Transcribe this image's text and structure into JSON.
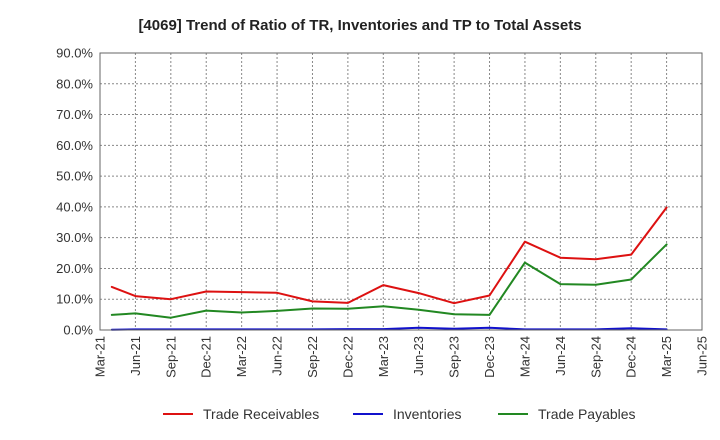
{
  "chart_data": {
    "type": "line",
    "title": "[4069]  Trend of Ratio of TR, Inventories and TP to Total Assets",
    "xlabel": "",
    "ylabel": "",
    "ylim": [
      0,
      90
    ],
    "y_ticks": [
      "0.0%",
      "10.0%",
      "20.0%",
      "30.0%",
      "40.0%",
      "50.0%",
      "60.0%",
      "70.0%",
      "80.0%",
      "90.0%"
    ],
    "x_ticks": [
      "Mar-21",
      "Jun-21",
      "Sep-21",
      "Dec-21",
      "Mar-22",
      "Jun-22",
      "Sep-22",
      "Dec-22",
      "Mar-23",
      "Jun-23",
      "Sep-23",
      "Dec-23",
      "Mar-24",
      "Jun-24",
      "Sep-24",
      "Dec-24",
      "Mar-25",
      "Jun-25"
    ],
    "grid": true,
    "legend_position": "bottom",
    "series": [
      {
        "name": "Trade Receivables",
        "color": "#dd1111",
        "points": [
          {
            "x": "Apr-21",
            "y": 14.0
          },
          {
            "x": "Jun-21",
            "y": 11.0
          },
          {
            "x": "Sep-21",
            "y": 10.0
          },
          {
            "x": "Dec-21",
            "y": 12.5
          },
          {
            "x": "Mar-22",
            "y": 12.3
          },
          {
            "x": "Jun-22",
            "y": 12.1
          },
          {
            "x": "Sep-22",
            "y": 9.3
          },
          {
            "x": "Dec-22",
            "y": 8.8
          },
          {
            "x": "Mar-23",
            "y": 14.6
          },
          {
            "x": "Jun-23",
            "y": 12.0
          },
          {
            "x": "Sep-23",
            "y": 8.7
          },
          {
            "x": "Dec-23",
            "y": 11.2
          },
          {
            "x": "Mar-24",
            "y": 28.7
          },
          {
            "x": "Jun-24",
            "y": 23.5
          },
          {
            "x": "Sep-24",
            "y": 23.0
          },
          {
            "x": "Dec-24",
            "y": 24.5
          },
          {
            "x": "Mar-25",
            "y": 39.8
          }
        ]
      },
      {
        "name": "Inventories",
        "color": "#1111cc",
        "points": [
          {
            "x": "Apr-21",
            "y": 0.1
          },
          {
            "x": "Jun-21",
            "y": 0.2
          },
          {
            "x": "Dec-21",
            "y": 0.2
          },
          {
            "x": "Mar-22",
            "y": 0.2
          },
          {
            "x": "Jun-22",
            "y": 0.2
          },
          {
            "x": "Sep-22",
            "y": 0.2
          },
          {
            "x": "Dec-22",
            "y": 0.3
          },
          {
            "x": "Mar-23",
            "y": 0.3
          },
          {
            "x": "Jun-23",
            "y": 0.7
          },
          {
            "x": "Sep-23",
            "y": 0.4
          },
          {
            "x": "Dec-23",
            "y": 0.7
          },
          {
            "x": "Mar-24",
            "y": 0.2
          },
          {
            "x": "Jun-24",
            "y": 0.2
          },
          {
            "x": "Sep-24",
            "y": 0.2
          },
          {
            "x": "Dec-24",
            "y": 0.6
          },
          {
            "x": "Mar-25",
            "y": 0.2
          }
        ]
      },
      {
        "name": "Trade Payables",
        "color": "#228822",
        "points": [
          {
            "x": "Apr-21",
            "y": 4.9
          },
          {
            "x": "Jun-21",
            "y": 5.4
          },
          {
            "x": "Sep-21",
            "y": 4.0
          },
          {
            "x": "Dec-21",
            "y": 6.3
          },
          {
            "x": "Mar-22",
            "y": 5.7
          },
          {
            "x": "Jun-22",
            "y": 6.2
          },
          {
            "x": "Sep-22",
            "y": 7.0
          },
          {
            "x": "Dec-22",
            "y": 6.9
          },
          {
            "x": "Mar-23",
            "y": 7.7
          },
          {
            "x": "Jun-23",
            "y": 6.6
          },
          {
            "x": "Sep-23",
            "y": 5.1
          },
          {
            "x": "Dec-23",
            "y": 4.9
          },
          {
            "x": "Mar-24",
            "y": 21.9
          },
          {
            "x": "Jun-24",
            "y": 14.9
          },
          {
            "x": "Sep-24",
            "y": 14.7
          },
          {
            "x": "Dec-24",
            "y": 16.4
          },
          {
            "x": "Mar-25",
            "y": 27.8
          }
        ]
      }
    ]
  }
}
